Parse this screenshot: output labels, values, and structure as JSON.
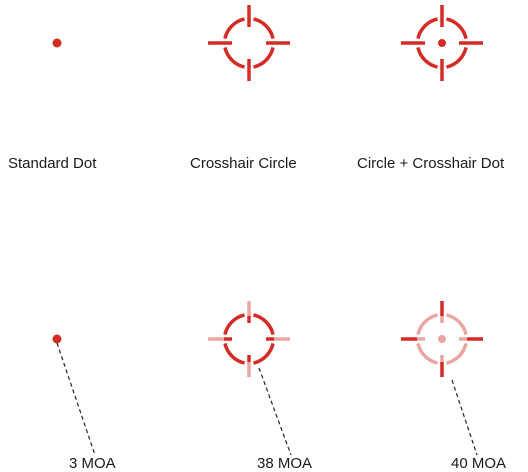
{
  "reticles": [
    {
      "name": "Standard Dot",
      "moa": "3 MOA"
    },
    {
      "name": "Crosshair Circle",
      "moa": "38 MOA"
    },
    {
      "name": "Circle + Crosshair Dot",
      "moa": "40 MOA"
    }
  ],
  "colors": {
    "reticle_red": "#d42b25",
    "reticle_faint": "#eaa6a3",
    "text": "#1a1a1a",
    "leader_line": "#222222"
  }
}
